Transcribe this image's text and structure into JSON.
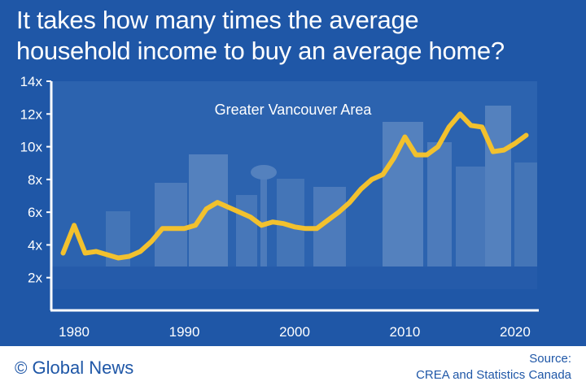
{
  "headline": {
    "line1": "It takes how many times the average",
    "line2": "household income to buy an average home?"
  },
  "brand": {
    "symbol": "©",
    "name": "Global News"
  },
  "source": {
    "label": "Source:",
    "text": "CREA and Statistics Canada"
  },
  "colors": {
    "background": "#1f57a7",
    "line": "#f2c12e",
    "text": "#ffffff",
    "footer_text": "#1f57a7"
  },
  "chart_data": {
    "type": "line",
    "title": "Greater Vancouver Area",
    "xlabel": "",
    "ylabel": "",
    "xlim": [
      1978,
      2022
    ],
    "ylim": [
      0,
      14
    ],
    "y_ticks": [
      2,
      4,
      6,
      8,
      10,
      12,
      14
    ],
    "y_tick_labels": [
      "2x",
      "4x",
      "6x",
      "8x",
      "10x",
      "12x",
      "14x"
    ],
    "x_ticks": [
      1980,
      1990,
      2000,
      2010,
      2020
    ],
    "x_tick_labels": [
      "1980",
      "1990",
      "2000",
      "2010",
      "2020"
    ],
    "grid": false,
    "series": [
      {
        "values": [
          [
            1979,
            3.5
          ],
          [
            1980,
            5.2
          ],
          [
            1981,
            3.5
          ],
          [
            1982,
            3.6
          ],
          [
            1983,
            3.4
          ],
          [
            1984,
            3.2
          ],
          [
            1985,
            3.3
          ],
          [
            1986,
            3.6
          ],
          [
            1987,
            4.2
          ],
          [
            1988,
            5.0
          ],
          [
            1989,
            5.0
          ],
          [
            1990,
            5.0
          ],
          [
            1991,
            5.2
          ],
          [
            1992,
            6.2
          ],
          [
            1993,
            6.6
          ],
          [
            1994,
            6.3
          ],
          [
            1995,
            6.0
          ],
          [
            1996,
            5.7
          ],
          [
            1997,
            5.2
          ],
          [
            1998,
            5.4
          ],
          [
            1999,
            5.3
          ],
          [
            2000,
            5.1
          ],
          [
            2001,
            5.0
          ],
          [
            2002,
            5.0
          ],
          [
            2003,
            5.5
          ],
          [
            2004,
            6.0
          ],
          [
            2005,
            6.6
          ],
          [
            2006,
            7.4
          ],
          [
            2007,
            8.0
          ],
          [
            2008,
            8.3
          ],
          [
            2009,
            9.3
          ],
          [
            2010,
            10.6
          ],
          [
            2011,
            9.5
          ],
          [
            2012,
            9.5
          ],
          [
            2013,
            10.0
          ],
          [
            2014,
            11.2
          ],
          [
            2015,
            12.0
          ],
          [
            2016,
            11.3
          ],
          [
            2017,
            11.2
          ],
          [
            2018,
            9.7
          ],
          [
            2019,
            9.8
          ],
          [
            2020,
            10.2
          ],
          [
            2021,
            10.7
          ]
        ]
      }
    ]
  }
}
